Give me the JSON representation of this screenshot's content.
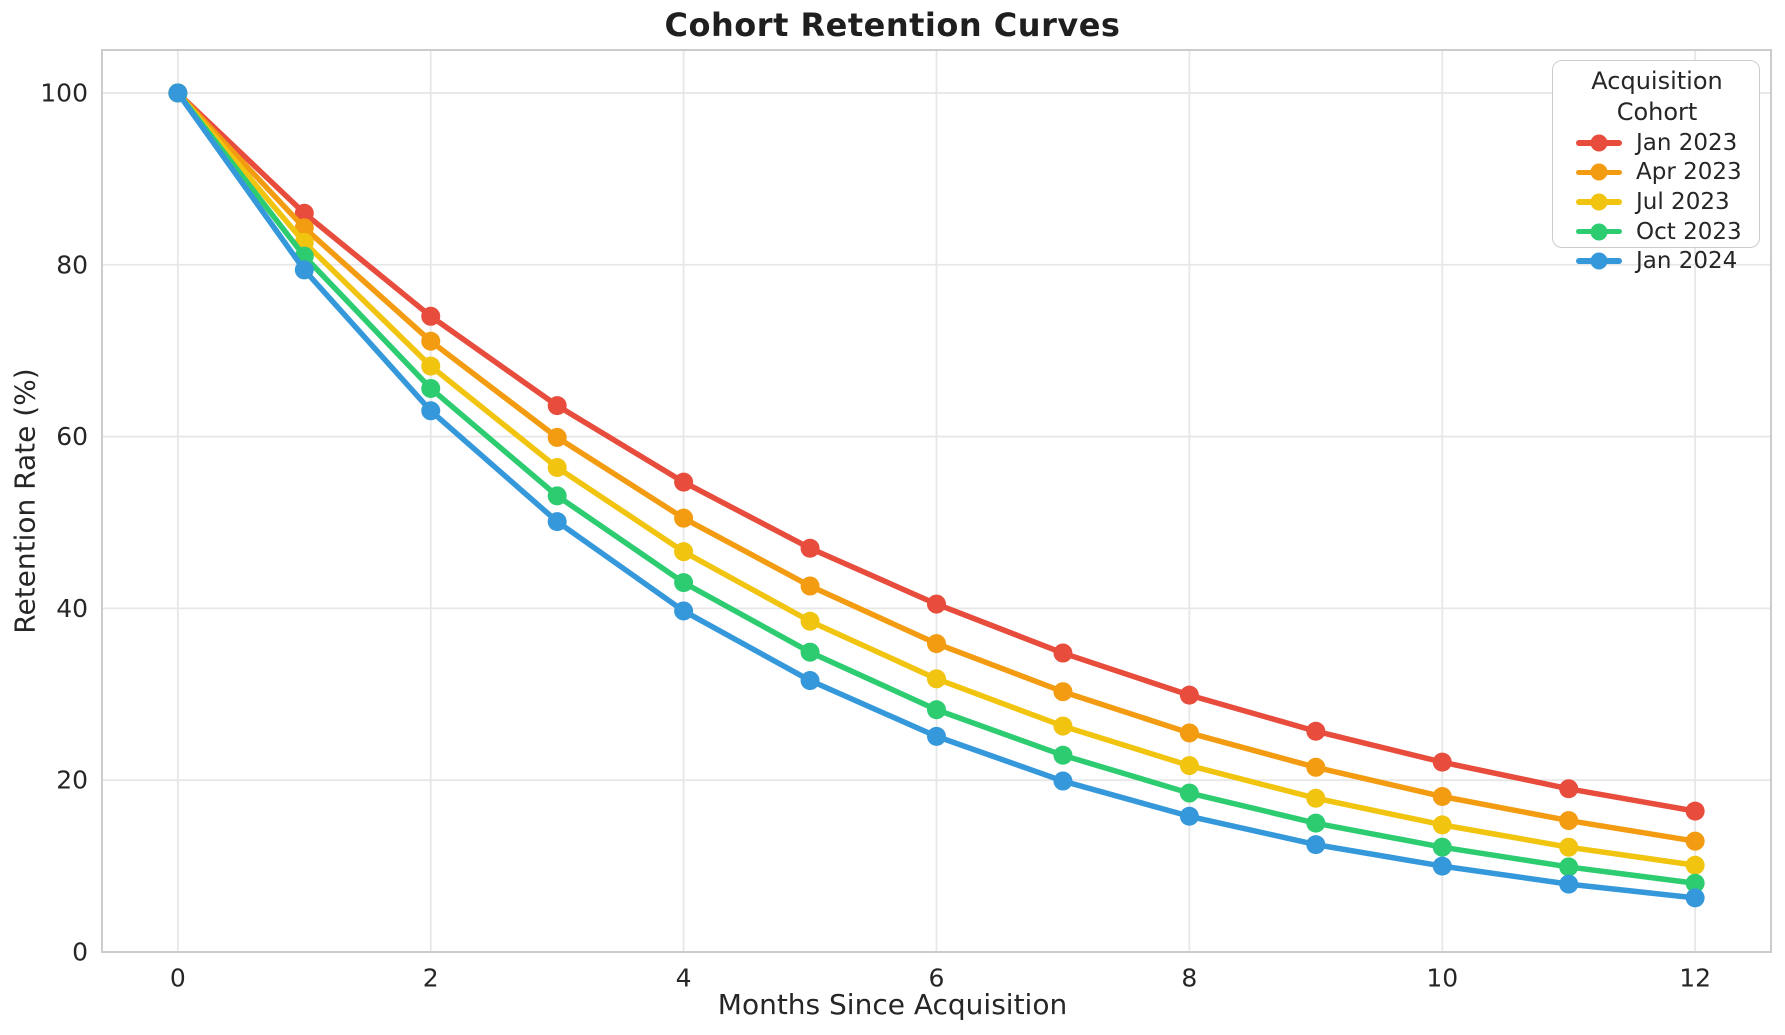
{
  "chart_data": {
    "type": "line",
    "title": "Cohort Retention Curves",
    "xlabel": "Months Since Acquisition",
    "ylabel": "Retention Rate (%)",
    "x": [
      0,
      1,
      2,
      3,
      4,
      5,
      6,
      7,
      8,
      9,
      10,
      11,
      12
    ],
    "series": [
      {
        "name": "Jan 2023",
        "color": "#e74c3c",
        "values": [
          100,
          86.0,
          74.0,
          63.6,
          54.7,
          47.0,
          40.5,
          34.8,
          29.9,
          25.7,
          22.1,
          19.0,
          16.4
        ]
      },
      {
        "name": "Apr 2023",
        "color": "#f39c12",
        "values": [
          100,
          84.3,
          71.1,
          59.9,
          50.5,
          42.6,
          35.9,
          30.3,
          25.5,
          21.5,
          18.1,
          15.3,
          12.9
        ]
      },
      {
        "name": "Jul 2023",
        "color": "#f1c40f",
        "values": [
          100,
          82.6,
          68.2,
          56.4,
          46.6,
          38.5,
          31.8,
          26.3,
          21.7,
          17.9,
          14.8,
          12.2,
          10.1
        ]
      },
      {
        "name": "Oct 2023",
        "color": "#2ecc71",
        "values": [
          100,
          81.0,
          65.6,
          53.1,
          43.0,
          34.9,
          28.2,
          22.9,
          18.5,
          15.0,
          12.2,
          9.9,
          8.0
        ]
      },
      {
        "name": "Jan 2024",
        "color": "#3498db",
        "values": [
          100,
          79.4,
          63.0,
          50.1,
          39.7,
          31.6,
          25.1,
          19.9,
          15.8,
          12.5,
          10.0,
          7.9,
          6.3
        ]
      }
    ],
    "legend": {
      "title": "Acquisition Cohort",
      "position": "upper right"
    },
    "xticks": [
      0,
      2,
      4,
      6,
      8,
      10,
      12
    ],
    "yticks": [
      0,
      20,
      40,
      60,
      80,
      100
    ],
    "xlim": [
      -0.6,
      12.6
    ],
    "ylim": [
      0,
      105
    ],
    "grid": true,
    "marker": "circle",
    "grid_color": "#e7e7e7",
    "spine_color": "#cccccc",
    "text_color": "#262626"
  }
}
